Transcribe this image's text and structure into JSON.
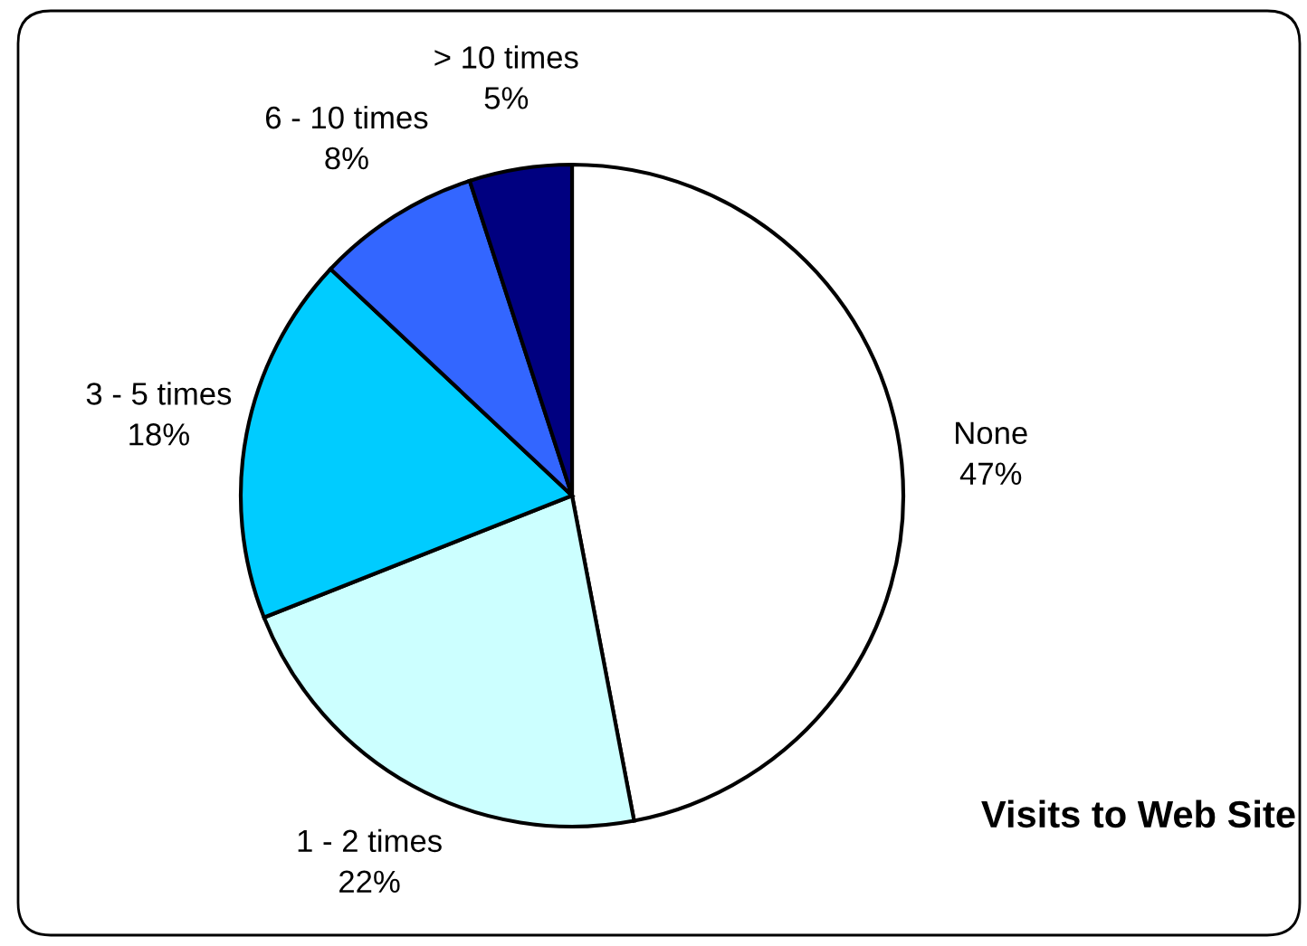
{
  "chart_data": {
    "type": "pie",
    "title": "Visits to Web Site",
    "categories": [
      "None",
      "1 - 2 times",
      "3 - 5 times",
      "6 - 10 times",
      "> 10 times"
    ],
    "values": [
      47,
      22,
      18,
      8,
      5
    ],
    "value_labels": [
      "47%",
      "22%",
      "18%",
      "8%",
      "5%"
    ],
    "colors": [
      "#ffffff",
      "#ccffff",
      "#00ccff",
      "#3366ff",
      "#000080"
    ],
    "legend": false
  }
}
